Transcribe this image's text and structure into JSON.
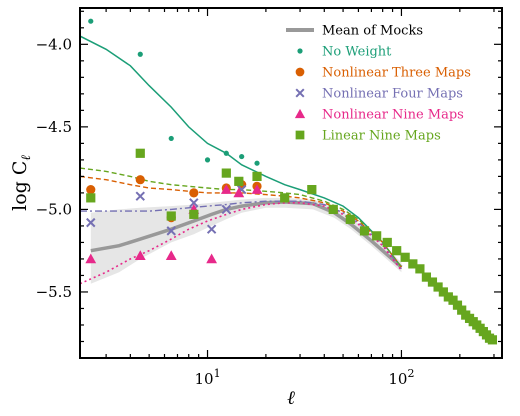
{
  "chart_data": {
    "type": "scatter",
    "title": "",
    "xlabel": "ℓ",
    "ylabel": "log C",
    "ylabel_sub": "ℓ",
    "x_scale": "log",
    "xlim": [
      2.2,
      330
    ],
    "ylim": [
      -5.9,
      -3.78
    ],
    "x_ticks": [
      {
        "value": 10,
        "base": "10",
        "exp": "1"
      },
      {
        "value": 100,
        "base": "10",
        "exp": "2"
      }
    ],
    "y_ticks": [
      {
        "value": -5.5,
        "label": "−5.5"
      },
      {
        "value": -5.0,
        "label": "−5.0"
      },
      {
        "value": -4.5,
        "label": "−4.5"
      },
      {
        "value": -4.0,
        "label": "−4.0"
      }
    ],
    "grid": false,
    "legend_position": "top-right",
    "legend": [
      {
        "label": "Mean of Mocks",
        "color": "#999999",
        "marker": "line"
      },
      {
        "label": "No Weight",
        "color": "#1b9e77",
        "marker": "dot"
      },
      {
        "label": "Nonlinear Three Maps",
        "color": "#d95f02",
        "marker": "circle"
      },
      {
        "label": "Nonlinear Four Maps",
        "color": "#7570b3",
        "marker": "x"
      },
      {
        "label": "Nonlinear Nine Maps",
        "color": "#e7298a",
        "marker": "triangle"
      },
      {
        "label": "Linear Nine Maps",
        "color": "#66a61e",
        "marker": "square"
      }
    ],
    "band": {
      "color": "#e6e6e6",
      "x": [
        2.5,
        3.5,
        4.5,
        6.5,
        8.5,
        10.5,
        12.5,
        15,
        20,
        25,
        35,
        45,
        55,
        70,
        100
      ],
      "upper": [
        -5.02,
        -5.0,
        -4.99,
        -4.98,
        -4.97,
        -4.96,
        -4.95,
        -4.94,
        -4.93,
        -4.93,
        -4.94,
        -4.99,
        -5.05,
        -5.15,
        -5.32
      ],
      "lower": [
        -5.45,
        -5.38,
        -5.3,
        -5.2,
        -5.15,
        -5.1,
        -5.06,
        -5.02,
        -4.99,
        -4.99,
        -5.0,
        -5.05,
        -5.12,
        -5.22,
        -5.38
      ]
    },
    "lines": [
      {
        "name": "Mean of Mocks",
        "color": "#999999",
        "width": 3.5,
        "dash": "",
        "x": [
          2.5,
          3.5,
          4.5,
          6.5,
          8.5,
          10.5,
          12.5,
          15,
          20,
          25,
          35,
          45,
          55,
          70,
          100
        ],
        "y": [
          -5.25,
          -5.22,
          -5.18,
          -5.12,
          -5.07,
          -5.03,
          -5.0,
          -4.98,
          -4.96,
          -4.955,
          -4.965,
          -5.02,
          -5.09,
          -5.19,
          -5.35
        ]
      },
      {
        "name": "No Weight",
        "color": "#1b9e77",
        "width": 1.5,
        "dash": "",
        "x": [
          2.2,
          3,
          4,
          5,
          6.5,
          8,
          10,
          12.5,
          15,
          20,
          25,
          30,
          40,
          50,
          60,
          80,
          100
        ],
        "y": [
          -3.95,
          -4.03,
          -4.13,
          -4.25,
          -4.38,
          -4.5,
          -4.6,
          -4.66,
          -4.73,
          -4.8,
          -4.85,
          -4.88,
          -4.93,
          -4.98,
          -5.05,
          -5.2,
          -5.35
        ]
      },
      {
        "name": "Nonlinear Three Maps",
        "color": "#d95f02",
        "width": 1.4,
        "dash": "5,3",
        "x": [
          2.2,
          3,
          4,
          5,
          6.5,
          8,
          10,
          12.5,
          15,
          20,
          25,
          30,
          40,
          50,
          60,
          80,
          100
        ],
        "y": [
          -4.8,
          -4.82,
          -4.85,
          -4.87,
          -4.88,
          -4.89,
          -4.9,
          -4.9,
          -4.9,
          -4.91,
          -4.92,
          -4.93,
          -4.96,
          -5.01,
          -5.07,
          -5.2,
          -5.35
        ]
      },
      {
        "name": "Linear Nine Maps",
        "color": "#66a61e",
        "width": 1.4,
        "dash": "5,3",
        "x": [
          2.2,
          3,
          4,
          5,
          6.5,
          8,
          10,
          12.5,
          15,
          20,
          25,
          30,
          40,
          50,
          60,
          80,
          100
        ],
        "y": [
          -4.75,
          -4.77,
          -4.8,
          -4.83,
          -4.85,
          -4.86,
          -4.87,
          -4.88,
          -4.88,
          -4.89,
          -4.9,
          -4.91,
          -4.95,
          -5.0,
          -5.06,
          -5.2,
          -5.35
        ]
      },
      {
        "name": "Nonlinear Four Maps",
        "color": "#7570b3",
        "width": 1.4,
        "dash": "7,3,2,3",
        "x": [
          2.2,
          3,
          4,
          5,
          6.5,
          8,
          10,
          12.5,
          15,
          20,
          25,
          30,
          40,
          50,
          60,
          80,
          100
        ],
        "y": [
          -5.01,
          -5.01,
          -5.01,
          -5.01,
          -5.0,
          -4.99,
          -4.98,
          -4.97,
          -4.96,
          -4.95,
          -4.95,
          -4.95,
          -4.97,
          -5.02,
          -5.08,
          -5.21,
          -5.36
        ]
      },
      {
        "name": "Nonlinear Nine Maps",
        "color": "#e7298a",
        "width": 1.6,
        "dash": "2,3",
        "x": [
          2.2,
          3,
          4,
          5,
          6.5,
          8,
          10,
          12.5,
          15,
          20,
          25,
          30,
          40,
          50,
          60,
          80,
          100
        ],
        "y": [
          -5.45,
          -5.38,
          -5.3,
          -5.25,
          -5.18,
          -5.12,
          -5.07,
          -5.03,
          -5.0,
          -4.97,
          -4.96,
          -4.96,
          -4.98,
          -5.03,
          -5.09,
          -5.22,
          -5.37
        ]
      }
    ],
    "points": [
      {
        "name": "No Weight",
        "marker": "dot",
        "color": "#1b9e77",
        "x": [
          2.5,
          4.5,
          6.5,
          10,
          12.5,
          15,
          18
        ],
        "y": [
          -3.86,
          -4.06,
          -4.57,
          -4.7,
          -4.66,
          -4.68,
          -4.72
        ]
      },
      {
        "name": "Nonlinear Three Maps",
        "marker": "circle",
        "color": "#d95f02",
        "x": [
          2.5,
          4.5,
          6.5,
          8.5,
          12.5,
          15,
          18
        ],
        "y": [
          -4.88,
          -4.82,
          -5.05,
          -4.9,
          -4.87,
          -4.85,
          -4.86
        ]
      },
      {
        "name": "Nonlinear Four Maps",
        "marker": "x",
        "color": "#7570b3",
        "x": [
          2.5,
          4.5,
          6.5,
          8.5,
          10.5,
          12.5,
          15
        ],
        "y": [
          -5.08,
          -4.92,
          -5.13,
          -4.96,
          -5.12,
          -5.0,
          -4.88
        ]
      },
      {
        "name": "Nonlinear Nine Maps",
        "marker": "triangle",
        "color": "#e7298a",
        "x": [
          2.5,
          4.5,
          6.5,
          8.5,
          10.5,
          12.5,
          14.5,
          18
        ],
        "y": [
          -5.3,
          -5.28,
          -5.28,
          -5.0,
          -5.3,
          -4.88,
          -4.9,
          -4.88
        ]
      },
      {
        "name": "Linear Nine Maps",
        "marker": "square",
        "color": "#66a61e",
        "x": [
          2.5,
          4.5,
          6.5,
          8.5,
          12.5,
          14.5,
          18,
          25,
          34.5,
          44.5,
          54.5,
          64.5,
          74.5,
          84.5,
          94.5,
          104.5,
          114.5,
          124.5,
          134.5,
          144.5,
          154.5,
          164.5,
          174.5,
          184.5,
          194.5,
          204.5,
          214.5,
          224.5,
          234.5,
          244.5,
          254.5,
          264.5,
          274.5,
          284.5,
          294.5
        ],
        "y": [
          -4.93,
          -4.66,
          -5.04,
          -5.03,
          -4.78,
          -4.83,
          -4.8,
          -4.93,
          -4.88,
          -5.0,
          -5.06,
          -5.13,
          -5.16,
          -5.2,
          -5.25,
          -5.29,
          -5.33,
          -5.36,
          -5.41,
          -5.44,
          -5.47,
          -5.5,
          -5.53,
          -5.55,
          -5.58,
          -5.61,
          -5.64,
          -5.66,
          -5.68,
          -5.7,
          -5.72,
          -5.74,
          -5.76,
          -5.78,
          -5.79
        ]
      }
    ]
  }
}
